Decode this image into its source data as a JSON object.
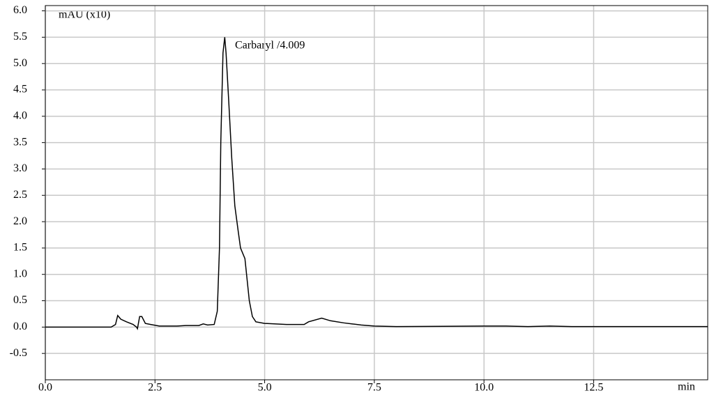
{
  "chart_data": {
    "type": "line",
    "ylabel": "mAU (x10)",
    "xlabel": "min",
    "annotations": [
      {
        "text": "Carbaryl /4.009"
      }
    ],
    "xlim": [
      0,
      15.1
    ],
    "ylim": [
      -1.0,
      6.1
    ],
    "xticks": [
      {
        "value": 0,
        "label": "0.0"
      },
      2.5,
      {
        "value": 5,
        "label": "5.0"
      },
      7.5,
      {
        "value": 10,
        "label": "10.0"
      },
      12.5
    ],
    "yticks": [
      {
        "value": 6,
        "label": "6.0"
      },
      5.5,
      {
        "value": 5,
        "label": "5.0"
      },
      4.5,
      {
        "value": 4,
        "label": "4.0"
      },
      3.5,
      {
        "value": 3,
        "label": "3.0"
      },
      2.5,
      {
        "value": 2,
        "label": "2.0"
      },
      1.5,
      {
        "value": 1,
        "label": "1.0"
      },
      0.5,
      {
        "value": 0,
        "label": "0.0"
      },
      -0.5
    ],
    "grid": true,
    "x": [
      0,
      1.5,
      1.6,
      1.65,
      1.72,
      1.85,
      2.0,
      2.08,
      2.1,
      2.15,
      2.2,
      2.28,
      2.4,
      2.6,
      3.0,
      3.2,
      3.5,
      3.6,
      3.7,
      3.85,
      3.92,
      3.97,
      4.0,
      4.05,
      4.09,
      4.12,
      4.18,
      4.25,
      4.32,
      4.4,
      4.45,
      4.55,
      4.6,
      4.65,
      4.72,
      4.8,
      5.0,
      5.5,
      5.9,
      6.0,
      6.3,
      6.5,
      6.8,
      7.0,
      7.2,
      7.5,
      8.0,
      10.0,
      10.5,
      11.0,
      11.5,
      12.0,
      15.1
    ],
    "series": [
      {
        "color": "#000000",
        "values": [
          0,
          0,
          0.05,
          0.22,
          0.15,
          0.1,
          0.05,
          0.0,
          -0.03,
          0.2,
          0.2,
          0.07,
          0.05,
          0.02,
          0.02,
          0.03,
          0.03,
          0.06,
          0.04,
          0.05,
          0.3,
          1.5,
          3.5,
          5.2,
          5.5,
          5.2,
          4.3,
          3.2,
          2.3,
          1.8,
          1.5,
          1.3,
          0.9,
          0.5,
          0.2,
          0.1,
          0.07,
          0.05,
          0.05,
          0.1,
          0.17,
          0.12,
          0.08,
          0.06,
          0.04,
          0.02,
          0.01,
          0.02,
          0.02,
          0.01,
          0.02,
          0.01,
          0.01
        ]
      }
    ]
  }
}
